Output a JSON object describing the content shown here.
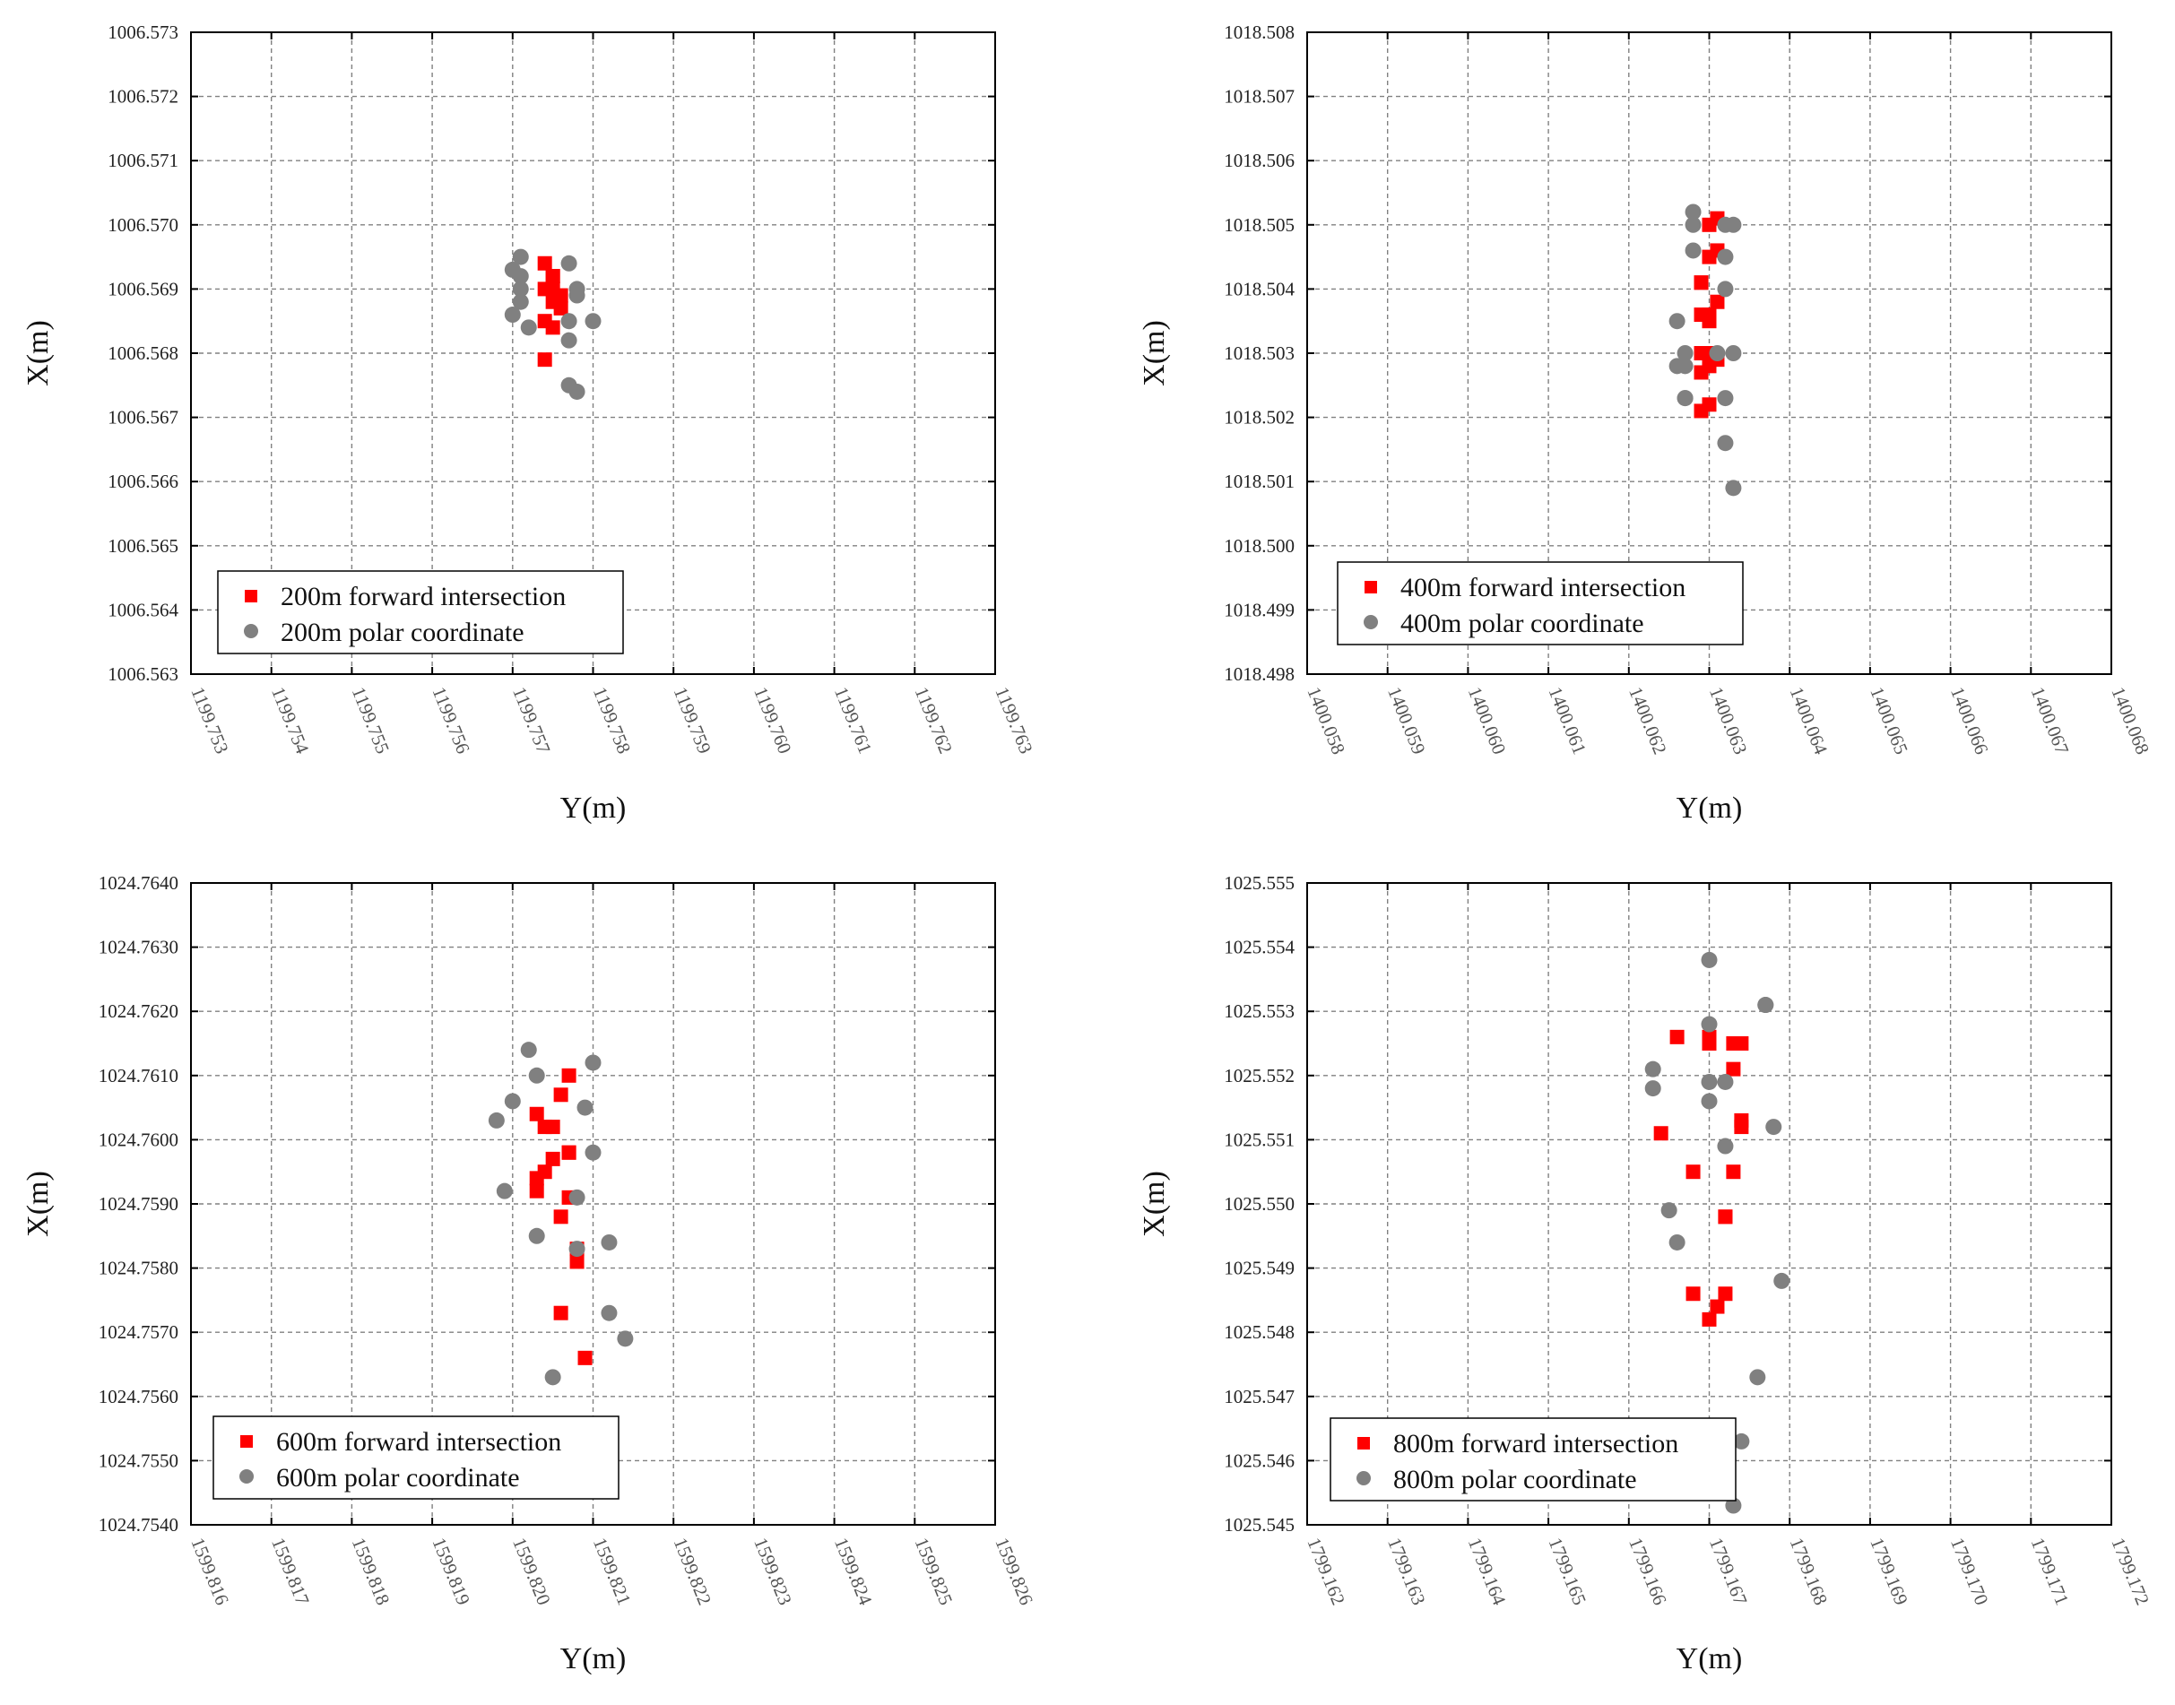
{
  "colors": {
    "forward": "#ff0000",
    "polar": "#808080",
    "grid": "#808080",
    "axis": "#000000"
  },
  "chart_data": [
    {
      "type": "scatter",
      "xlabel": "Y(m)",
      "ylabel": "X(m)",
      "grid": true,
      "legend": "bottom-left",
      "xlim": [
        1199.753,
        1199.763
      ],
      "ylim": [
        1006.563,
        1006.573
      ],
      "xticks": [
        "1199.753",
        "1199.754",
        "1199.755",
        "1199.756",
        "1199.757",
        "1199.758",
        "1199.759",
        "1199.760",
        "1199.761",
        "1199.762",
        "1199.763"
      ],
      "yticks": [
        "1006.563",
        "1006.564",
        "1006.565",
        "1006.566",
        "1006.567",
        "1006.568",
        "1006.569",
        "1006.570",
        "1006.571",
        "1006.572",
        "1006.573"
      ],
      "series": [
        {
          "name": "200m forward intersection",
          "marker": "square",
          "color": "#ff0000",
          "points": [
            [
              1199.7574,
              1006.5694
            ],
            [
              1199.7575,
              1006.5692
            ],
            [
              1199.7575,
              1006.569
            ],
            [
              1199.7574,
              1006.569
            ],
            [
              1199.7576,
              1006.5689
            ],
            [
              1199.7575,
              1006.5688
            ],
            [
              1199.7576,
              1006.5687
            ],
            [
              1199.7574,
              1006.5685
            ],
            [
              1199.7575,
              1006.5684
            ],
            [
              1199.7574,
              1006.5679
            ],
            [
              1199.7575,
              1006.5692
            ]
          ]
        },
        {
          "name": "200m polar coordinate",
          "marker": "circle",
          "color": "#808080",
          "points": [
            [
              1199.7571,
              1006.5695
            ],
            [
              1199.757,
              1006.5693
            ],
            [
              1199.7571,
              1006.5692
            ],
            [
              1199.7571,
              1006.569
            ],
            [
              1199.7571,
              1006.5688
            ],
            [
              1199.757,
              1006.5686
            ],
            [
              1199.7572,
              1006.5684
            ],
            [
              1199.7577,
              1006.5694
            ],
            [
              1199.7578,
              1006.569
            ],
            [
              1199.7578,
              1006.5689
            ],
            [
              1199.7577,
              1006.5685
            ],
            [
              1199.7577,
              1006.5682
            ],
            [
              1199.758,
              1006.5685
            ],
            [
              1199.7577,
              1006.5675
            ],
            [
              1199.7578,
              1006.5674
            ]
          ]
        }
      ],
      "legend_entries": [
        "200m forward intersection",
        "200m polar coordinate"
      ]
    },
    {
      "type": "scatter",
      "xlabel": "Y(m)",
      "ylabel": "X(m)",
      "grid": true,
      "legend": "bottom-left",
      "xlim": [
        1400.058,
        1400.068
      ],
      "ylim": [
        1018.498,
        1018.508
      ],
      "xticks": [
        "1400.058",
        "1400.059",
        "1400.060",
        "1400.061",
        "1400.062",
        "1400.063",
        "1400.064",
        "1400.065",
        "1400.066",
        "1400.067",
        "1400.068"
      ],
      "yticks": [
        "1018.498",
        "1018.499",
        "1018.500",
        "1018.501",
        "1018.502",
        "1018.503",
        "1018.504",
        "1018.505",
        "1018.506",
        "1018.507",
        "1018.508"
      ],
      "series": [
        {
          "name": "400m forward intersection",
          "marker": "square",
          "color": "#ff0000",
          "points": [
            [
              1400.0631,
              1018.5051
            ],
            [
              1400.063,
              1018.505
            ],
            [
              1400.0631,
              1018.5046
            ],
            [
              1400.063,
              1018.5045
            ],
            [
              1400.0629,
              1018.5041
            ],
            [
              1400.0629,
              1018.5041
            ],
            [
              1400.0631,
              1018.5038
            ],
            [
              1400.063,
              1018.5036
            ],
            [
              1400.0629,
              1018.5036
            ],
            [
              1400.063,
              1018.5035
            ],
            [
              1400.0629,
              1018.503
            ],
            [
              1400.063,
              1018.503
            ],
            [
              1400.0631,
              1018.5029
            ],
            [
              1400.063,
              1018.5028
            ],
            [
              1400.0629,
              1018.5027
            ],
            [
              1400.063,
              1018.5022
            ],
            [
              1400.0629,
              1018.5021
            ]
          ]
        },
        {
          "name": "400m polar coordinate",
          "marker": "circle",
          "color": "#808080",
          "points": [
            [
              1400.0628,
              1018.5052
            ],
            [
              1400.0628,
              1018.505
            ],
            [
              1400.0632,
              1018.505
            ],
            [
              1400.0633,
              1018.505
            ],
            [
              1400.0628,
              1018.5046
            ],
            [
              1400.0632,
              1018.5045
            ],
            [
              1400.0632,
              1018.504
            ],
            [
              1400.0626,
              1018.5035
            ],
            [
              1400.0627,
              1018.503
            ],
            [
              1400.0631,
              1018.503
            ],
            [
              1400.0633,
              1018.503
            ],
            [
              1400.0626,
              1018.5028
            ],
            [
              1400.0627,
              1018.5028
            ],
            [
              1400.0627,
              1018.5023
            ],
            [
              1400.0627,
              1018.5023
            ],
            [
              1400.0632,
              1018.5023
            ],
            [
              1400.0632,
              1018.5016
            ],
            [
              1400.0633,
              1018.5009
            ]
          ]
        }
      ],
      "legend_entries": [
        "400m forward intersection",
        "400m polar coordinate"
      ]
    },
    {
      "type": "scatter",
      "xlabel": "Y(m)",
      "ylabel": "X(m)",
      "grid": true,
      "legend": "bottom-left",
      "xlim": [
        1599.816,
        1599.826
      ],
      "ylim": [
        1024.754,
        1024.764
      ],
      "xticks": [
        "1599.816",
        "1599.817",
        "1599.818",
        "1599.819",
        "1599.820",
        "1599.821",
        "1599.822",
        "1599.823",
        "1599.824",
        "1599.825",
        "1599.826"
      ],
      "yticks": [
        "1024.7540",
        "1024.7550",
        "1024.7560",
        "1024.7570",
        "1024.7580",
        "1024.7590",
        "1024.7600",
        "1024.7610",
        "1024.7620",
        "1024.7630",
        "1024.7640"
      ],
      "series": [
        {
          "name": "600m forward intersection",
          "marker": "square",
          "color": "#ff0000",
          "points": [
            [
              1599.8207,
              1024.761
            ],
            [
              1599.8206,
              1024.7607
            ],
            [
              1599.8203,
              1024.7604
            ],
            [
              1599.8204,
              1024.7602
            ],
            [
              1599.8205,
              1024.7602
            ],
            [
              1599.8207,
              1024.7598
            ],
            [
              1599.8207,
              1024.7598
            ],
            [
              1599.8205,
              1024.7597
            ],
            [
              1599.8204,
              1024.7595
            ],
            [
              1599.8203,
              1024.7594
            ],
            [
              1599.8203,
              1024.7592
            ],
            [
              1599.8207,
              1024.7591
            ],
            [
              1599.8206,
              1024.7588
            ],
            [
              1599.8208,
              1024.7583
            ],
            [
              1599.8208,
              1024.7581
            ],
            [
              1599.8206,
              1024.7573
            ],
            [
              1599.8209,
              1024.7566
            ]
          ]
        },
        {
          "name": "600m polar coordinate",
          "marker": "circle",
          "color": "#808080",
          "points": [
            [
              1599.8202,
              1024.7614
            ],
            [
              1599.821,
              1024.7612
            ],
            [
              1599.8203,
              1024.761
            ],
            [
              1599.82,
              1024.7606
            ],
            [
              1599.8209,
              1024.7605
            ],
            [
              1599.8198,
              1024.7603
            ],
            [
              1599.821,
              1024.7598
            ],
            [
              1599.8199,
              1024.7592
            ],
            [
              1599.8208,
              1024.7591
            ],
            [
              1599.8203,
              1024.7585
            ],
            [
              1599.8212,
              1024.7584
            ],
            [
              1599.8208,
              1024.7583
            ],
            [
              1599.8212,
              1024.7573
            ],
            [
              1599.8214,
              1024.7569
            ],
            [
              1599.8205,
              1024.7563
            ]
          ]
        }
      ],
      "legend_entries": [
        "600m forward intersection",
        "600m polar coordinate"
      ]
    },
    {
      "type": "scatter",
      "xlabel": "Y(m)",
      "ylabel": "X(m)",
      "grid": true,
      "legend": "bottom-left",
      "xlim": [
        1799.162,
        1799.172
      ],
      "ylim": [
        1025.545,
        1025.555
      ],
      "xticks": [
        "1799.162",
        "1799.163",
        "1799.164",
        "1799.165",
        "1799.166",
        "1799.167",
        "1799.168",
        "1799.169",
        "1799.170",
        "1799.171",
        "1799.172"
      ],
      "yticks": [
        "1025.545",
        "1025.546",
        "1025.547",
        "1025.548",
        "1025.549",
        "1025.550",
        "1025.551",
        "1025.552",
        "1025.553",
        "1025.554",
        "1025.555"
      ],
      "series": [
        {
          "name": "800m forward intersection",
          "marker": "square",
          "color": "#ff0000",
          "points": [
            [
              1799.1666,
              1025.5526
            ],
            [
              1799.167,
              1025.5526
            ],
            [
              1799.167,
              1025.5525
            ],
            [
              1799.1673,
              1025.5525
            ],
            [
              1799.1674,
              1025.5525
            ],
            [
              1799.1673,
              1025.5521
            ],
            [
              1799.1674,
              1025.5513
            ],
            [
              1799.1674,
              1025.5512
            ],
            [
              1799.1664,
              1025.5511
            ],
            [
              1799.1668,
              1025.5505
            ],
            [
              1799.1673,
              1025.5505
            ],
            [
              1799.1672,
              1025.5498
            ],
            [
              1799.1672,
              1025.5498
            ],
            [
              1799.1668,
              1025.5486
            ],
            [
              1799.1672,
              1025.5486
            ],
            [
              1799.1671,
              1025.5484
            ],
            [
              1799.167,
              1025.5482
            ]
          ]
        },
        {
          "name": "800m polar coordinate",
          "marker": "circle",
          "color": "#808080",
          "points": [
            [
              1799.167,
              1025.5538
            ],
            [
              1799.1677,
              1025.5531
            ],
            [
              1799.1677,
              1025.5531
            ],
            [
              1799.167,
              1025.5528
            ],
            [
              1799.1663,
              1025.5521
            ],
            [
              1799.1663,
              1025.5518
            ],
            [
              1799.167,
              1025.5519
            ],
            [
              1799.1672,
              1025.5519
            ],
            [
              1799.167,
              1025.5516
            ],
            [
              1799.1678,
              1025.5512
            ],
            [
              1799.1672,
              1025.5509
            ],
            [
              1799.1665,
              1025.5499
            ],
            [
              1799.1666,
              1025.5494
            ],
            [
              1799.1679,
              1025.5488
            ],
            [
              1799.1676,
              1025.5473
            ],
            [
              1799.1674,
              1025.5463
            ],
            [
              1799.1673,
              1025.5453
            ]
          ]
        }
      ],
      "legend_entries": [
        "800m forward intersection",
        "800m polar coordinate"
      ]
    }
  ]
}
